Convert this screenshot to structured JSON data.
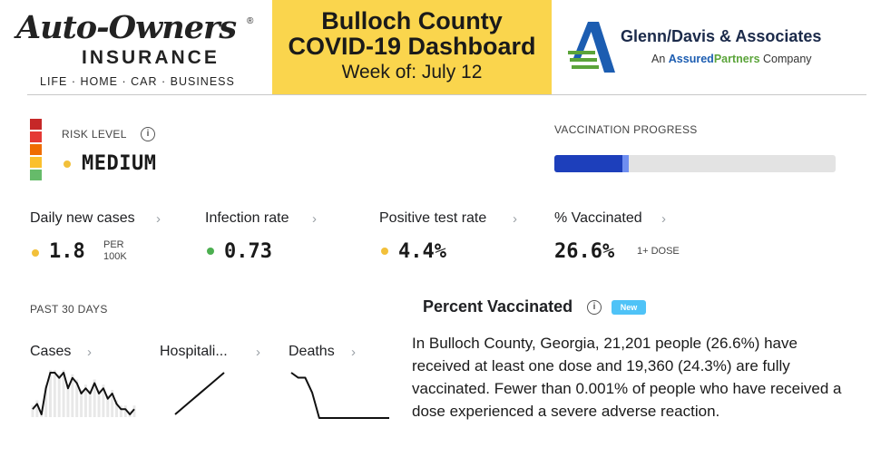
{
  "header": {
    "left_logo": {
      "wordmark": "Auto-Owners",
      "registered": "®",
      "insurance": "INSURANCE",
      "tagline": "LIFE · HOME · CAR · BUSINESS"
    },
    "title": {
      "line1": "Bulloch County",
      "line2": "COVID-19 Dashboard",
      "week": "Week of: July 12",
      "background_color": "#fad54d"
    },
    "right_logo": {
      "name": "Glenn/Davis & Associates",
      "sub_prefix": "An",
      "sub_assured": "Assured",
      "sub_partners": "Partners",
      "sub_suffix": "Company"
    }
  },
  "risk": {
    "label": "RISK LEVEL",
    "info_glyph": "i",
    "value": "MEDIUM",
    "value_dot_color": "#f2c03a",
    "scale_colors": [
      "#c62828",
      "#e53935",
      "#ef6c00",
      "#fbc02d",
      "#66bb6a"
    ]
  },
  "vaccination_progress": {
    "label": "VACCINATION PROGRESS",
    "fully_vaccinated_percent": 24.3,
    "one_dose_percent": 26.6,
    "fully_color": "#1d3fbb",
    "partial_color": "#6f8ef0"
  },
  "stats": [
    {
      "label": "Daily new cases",
      "value": "1.8",
      "unit_line1": "PER",
      "unit_line2": "100K",
      "dot_color": "#f2c03a"
    },
    {
      "label": "Infection rate",
      "value": "0.73",
      "dot_color": "#4caf50"
    },
    {
      "label": "Positive test rate",
      "value": "4.4%",
      "dot_color": "#f2c03a"
    },
    {
      "label": "% Vaccinated",
      "value": "26.6%",
      "unit": "1+ DOSE"
    }
  ],
  "past30": {
    "label": "PAST 30 DAYS",
    "charts": [
      {
        "label": "Cases",
        "values": [
          2,
          3,
          1,
          6,
          9,
          9,
          8,
          9,
          6,
          8,
          7,
          5,
          6,
          5,
          7,
          5,
          6,
          4,
          5,
          3,
          2,
          2,
          1,
          2
        ]
      },
      {
        "label": "Hospitali...",
        "values": [
          1,
          2,
          3,
          4,
          5,
          6,
          7,
          8,
          9,
          10
        ]
      },
      {
        "label": "Deaths",
        "values": [
          10,
          9,
          9,
          6,
          1,
          1,
          1,
          1,
          1,
          1,
          1,
          1,
          1,
          1,
          1
        ]
      }
    ]
  },
  "percent_vaccinated": {
    "title": "Percent Vaccinated",
    "info_glyph": "i",
    "badge": "New",
    "description": "In Bulloch County, Georgia, 21,201 people (26.6%) have received at least one dose and 19,360 (24.3%) are fully vaccinated. Fewer than 0.001% of people who have received a dose experienced a severe adverse reaction."
  },
  "icons": {
    "chevron": "chevron-right-icon",
    "info": "info-icon"
  }
}
